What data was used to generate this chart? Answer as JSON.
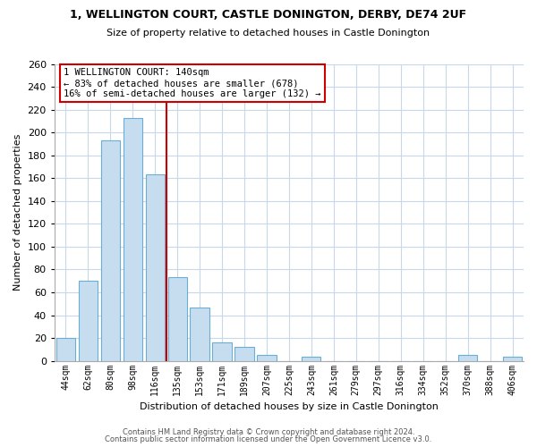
{
  "title": "1, WELLINGTON COURT, CASTLE DONINGTON, DERBY, DE74 2UF",
  "subtitle": "Size of property relative to detached houses in Castle Donington",
  "xlabel": "Distribution of detached houses by size in Castle Donington",
  "ylabel": "Number of detached properties",
  "bar_color": "#c6ddf0",
  "bar_edge_color": "#6aaed6",
  "background_color": "#ffffff",
  "grid_color": "#c8d8e8",
  "categories": [
    "44sqm",
    "62sqm",
    "80sqm",
    "98sqm",
    "116sqm",
    "135sqm",
    "153sqm",
    "171sqm",
    "189sqm",
    "207sqm",
    "225sqm",
    "243sqm",
    "261sqm",
    "279sqm",
    "297sqm",
    "316sqm",
    "334sqm",
    "352sqm",
    "370sqm",
    "388sqm",
    "406sqm"
  ],
  "values": [
    20,
    70,
    193,
    213,
    163,
    73,
    47,
    16,
    12,
    5,
    0,
    4,
    0,
    0,
    0,
    0,
    0,
    0,
    5,
    0,
    4
  ],
  "ref_line_color": "#cc0000",
  "annotation_title": "1 WELLINGTON COURT: 140sqm",
  "annotation_line1": "← 83% of detached houses are smaller (678)",
  "annotation_line2": "16% of semi-detached houses are larger (132) →",
  "annotation_box_color": "#ffffff",
  "annotation_box_edge_color": "#cc0000",
  "footnote1": "Contains HM Land Registry data © Crown copyright and database right 2024.",
  "footnote2": "Contains public sector information licensed under the Open Government Licence v3.0.",
  "ylim": [
    0,
    260
  ],
  "yticks": [
    0,
    20,
    40,
    60,
    80,
    100,
    120,
    140,
    160,
    180,
    200,
    220,
    240,
    260
  ]
}
